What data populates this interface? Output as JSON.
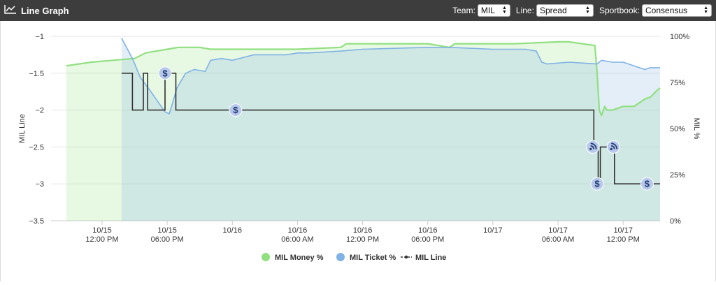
{
  "header": {
    "title": "Line Graph",
    "icon": "line-chart-icon",
    "team_label": "Team:",
    "team_value": "MIL",
    "line_label": "Line:",
    "line_value": "Spread",
    "sportbook_label": "Sportbook:",
    "sportbook_value": "Consensus"
  },
  "chart_data": {
    "type": "line",
    "ylabel": "MIL Line",
    "y2label": "MIL %",
    "ylim": [
      -3.5,
      -1
    ],
    "y_ticks": [
      -1,
      -1.5,
      -2,
      -2.5,
      -3,
      -3.5
    ],
    "y_tick_labels": [
      "−1",
      "−1.5",
      "−2",
      "−2.5",
      "−3",
      "−3.5"
    ],
    "y2lim": [
      0,
      100
    ],
    "y2_ticks": [
      100,
      75,
      50,
      25,
      0
    ],
    "y2_tick_labels": [
      "100%",
      "75%",
      "50%",
      "25%",
      "0%"
    ],
    "x_range_hours": [
      -4.7,
      51.4
    ],
    "x_ticks": [
      {
        "hour": 0,
        "date": "10/15",
        "time": "12:00 PM"
      },
      {
        "hour": 6,
        "date": "10/15",
        "time": "06:00 PM"
      },
      {
        "hour": 12,
        "date": "10/16",
        "time": ""
      },
      {
        "hour": 18,
        "date": "10/16",
        "time": "06:00 AM"
      },
      {
        "hour": 24,
        "date": "10/16",
        "time": "12:00 PM"
      },
      {
        "hour": 30,
        "date": "10/16",
        "time": "06:00 PM"
      },
      {
        "hour": 36,
        "date": "10/17",
        "time": ""
      },
      {
        "hour": 42,
        "date": "10/17",
        "time": "06:00 AM"
      },
      {
        "hour": 48,
        "date": "10/17",
        "time": "12:00 PM"
      }
    ],
    "grid": true,
    "legend_position": "bottom-center",
    "colors": {
      "money": "#90e080",
      "ticket": "#7fb2e5",
      "line": "#333333",
      "marker": "#b8c8ec",
      "marker_icon": "#1f3a6e"
    },
    "series": [
      {
        "name": "MIL Money %",
        "key": "money",
        "axis": "right",
        "points": [
          [
            -3.3,
            84
          ],
          [
            -1,
            86
          ],
          [
            1,
            87
          ],
          [
            3,
            88
          ],
          [
            4,
            91
          ],
          [
            5,
            92
          ],
          [
            6,
            93
          ],
          [
            7,
            94
          ],
          [
            8,
            94
          ],
          [
            9,
            94
          ],
          [
            10,
            93
          ],
          [
            12,
            93
          ],
          [
            18,
            93
          ],
          [
            22,
            94
          ],
          [
            22.5,
            96
          ],
          [
            23.5,
            96
          ],
          [
            24.5,
            96
          ],
          [
            26,
            96
          ],
          [
            30,
            96
          ],
          [
            32,
            94
          ],
          [
            32.5,
            96
          ],
          [
            38,
            96
          ],
          [
            42,
            97
          ],
          [
            43,
            97
          ],
          [
            45.4,
            95
          ],
          [
            45.6,
            80
          ],
          [
            45.8,
            60
          ],
          [
            46,
            57
          ],
          [
            46.3,
            62
          ],
          [
            46.5,
            60
          ],
          [
            47,
            60
          ],
          [
            48,
            62
          ],
          [
            49,
            62
          ],
          [
            50,
            66
          ],
          [
            50.5,
            67
          ],
          [
            51,
            70
          ],
          [
            51.4,
            72
          ]
        ]
      },
      {
        "name": "MIL Ticket %",
        "key": "ticket",
        "axis": "right",
        "points": [
          [
            1.8,
            99
          ],
          [
            2.8,
            88
          ],
          [
            3.5,
            78
          ],
          [
            4.5,
            70
          ],
          [
            5.8,
            59
          ],
          [
            6.2,
            58
          ],
          [
            6.9,
            72
          ],
          [
            7.7,
            80
          ],
          [
            8.5,
            82
          ],
          [
            9.5,
            81
          ],
          [
            10,
            87
          ],
          [
            11,
            88
          ],
          [
            12,
            87
          ],
          [
            14,
            90
          ],
          [
            17,
            90
          ],
          [
            18,
            91
          ],
          [
            19,
            91
          ],
          [
            22,
            92
          ],
          [
            24,
            93
          ],
          [
            30,
            94
          ],
          [
            32,
            94
          ],
          [
            36,
            93
          ],
          [
            39,
            93
          ],
          [
            40,
            92
          ],
          [
            40.5,
            86
          ],
          [
            41,
            85
          ],
          [
            43,
            86
          ],
          [
            45.6,
            85
          ],
          [
            46,
            87
          ],
          [
            47,
            86
          ],
          [
            48,
            86
          ],
          [
            50,
            82
          ],
          [
            50.5,
            83
          ],
          [
            51,
            83
          ],
          [
            51.4,
            83
          ]
        ]
      },
      {
        "name": "MIL Line",
        "key": "line",
        "axis": "left",
        "points": [
          [
            1.8,
            -1.5
          ],
          [
            2.8,
            -1.5
          ],
          [
            2.8,
            -2
          ],
          [
            3.8,
            -2
          ],
          [
            3.8,
            -1.5
          ],
          [
            4.2,
            -1.5
          ],
          [
            4.2,
            -2
          ],
          [
            5.8,
            -2
          ],
          [
            5.8,
            -1.5
          ],
          [
            6.8,
            -1.5
          ],
          [
            6.8,
            -2
          ],
          [
            45.3,
            -2
          ],
          [
            45.3,
            -2.5
          ],
          [
            45.7,
            -2.5
          ],
          [
            45.7,
            -3
          ],
          [
            45.9,
            -3
          ],
          [
            45.9,
            -2.5
          ],
          [
            47.2,
            -2.5
          ],
          [
            47.2,
            -3
          ],
          [
            51.4,
            -3
          ]
        ]
      }
    ],
    "markers": [
      {
        "x": 5.8,
        "y": -1.5,
        "type": "dollar"
      },
      {
        "x": 12.3,
        "y": -2,
        "type": "dollar"
      },
      {
        "x": 45.2,
        "y": -2.5,
        "type": "steam"
      },
      {
        "x": 45.6,
        "y": -3,
        "type": "dollar"
      },
      {
        "x": 47.1,
        "y": -2.5,
        "type": "steam"
      },
      {
        "x": 50.2,
        "y": -3,
        "type": "dollar"
      }
    ]
  }
}
